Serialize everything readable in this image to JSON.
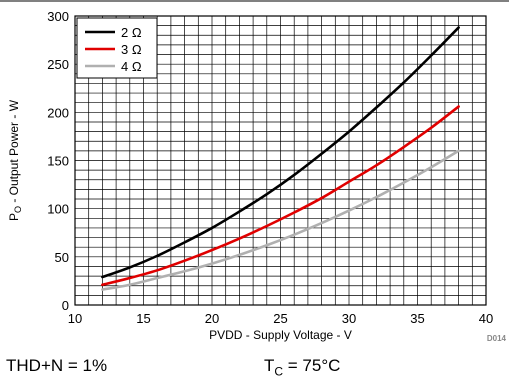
{
  "chart_data": {
    "type": "line",
    "xlabel": "PVDD - Supply Voltage - V",
    "ylabel_parts": {
      "main": "P",
      "sub": "O",
      "rest": " - Output Power - W"
    },
    "xlim": [
      10,
      40
    ],
    "ylim": [
      0,
      300
    ],
    "xticks": [
      10,
      15,
      20,
      25,
      30,
      35,
      40
    ],
    "yticks": [
      0,
      50,
      100,
      150,
      200,
      250,
      300
    ],
    "x_minor_step": 1,
    "y_minor_step": 10,
    "grid": true,
    "legend_position": "top-left",
    "series": [
      {
        "name": "2 Ω",
        "color": "#000000",
        "x": [
          12,
          14,
          16,
          18,
          20,
          22,
          24,
          26,
          28,
          30,
          32,
          34,
          36,
          38
        ],
        "y": [
          29,
          39,
          51,
          65,
          80,
          97,
          115,
          135,
          157,
          180,
          205,
          231,
          259,
          288
        ]
      },
      {
        "name": "3 Ω",
        "color": "#e00000",
        "x": [
          12,
          14,
          16,
          18,
          20,
          22,
          24,
          26,
          28,
          30,
          32,
          34,
          36,
          38
        ],
        "y": [
          21,
          28,
          36,
          46,
          57,
          69,
          82,
          96,
          111,
          128,
          145,
          164,
          184,
          206
        ]
      },
      {
        "name": "4 Ω",
        "color": "#b0b0b0",
        "x": [
          12,
          14,
          16,
          18,
          20,
          22,
          24,
          26,
          28,
          30,
          32,
          34,
          36,
          38
        ],
        "y": [
          16,
          21,
          28,
          35,
          43,
          52,
          62,
          73,
          85,
          98,
          112,
          127,
          143,
          160
        ]
      }
    ],
    "figure_code": "D014"
  },
  "conditions": {
    "thdn": "THD+N = 1%",
    "tc_main": "T",
    "tc_sub": "C",
    "tc_rest": " = 75°C"
  }
}
